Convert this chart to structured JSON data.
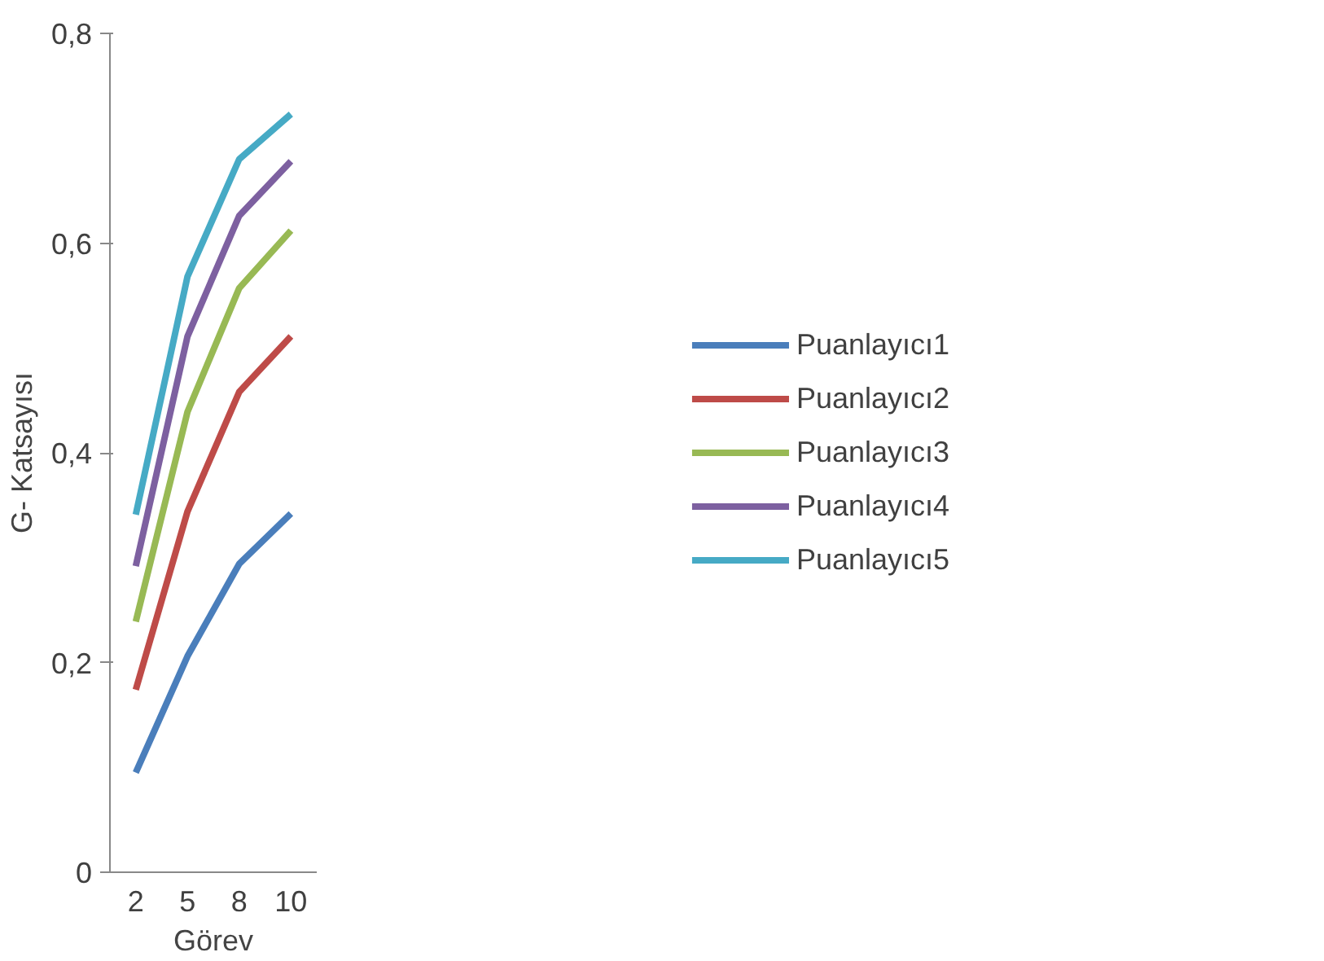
{
  "chart_data": {
    "type": "line",
    "xlabel": "Görev",
    "ylabel": "G- Katsayısı",
    "categories": [
      "2",
      "5",
      "8",
      "10"
    ],
    "series": [
      {
        "name": "Puanlayıcı1",
        "color": "#4a7ebb",
        "values": [
          0.095,
          0.206,
          0.294,
          0.342
        ]
      },
      {
        "name": "Puanlayıcı2",
        "color": "#be4b48",
        "values": [
          0.174,
          0.344,
          0.458,
          0.511
        ]
      },
      {
        "name": "Puanlayıcı3",
        "color": "#98b954",
        "values": [
          0.239,
          0.439,
          0.557,
          0.612
        ]
      },
      {
        "name": "Puanlayıcı4",
        "color": "#7d60a0",
        "values": [
          0.292,
          0.511,
          0.626,
          0.678
        ]
      },
      {
        "name": "Puanlayıcı5",
        "color": "#46aac5",
        "values": [
          0.341,
          0.568,
          0.68,
          0.723
        ]
      }
    ],
    "ylim": [
      0,
      0.8
    ],
    "yticks": [
      {
        "value": 0,
        "label": "0"
      },
      {
        "value": 0.2,
        "label": "0,2"
      },
      {
        "value": 0.4,
        "label": "0,4"
      },
      {
        "value": 0.6,
        "label": "0,6"
      },
      {
        "value": 0.8,
        "label": "0,8"
      }
    ],
    "grid": false,
    "legend": "right",
    "marker": "none",
    "line_style": "solid"
  }
}
